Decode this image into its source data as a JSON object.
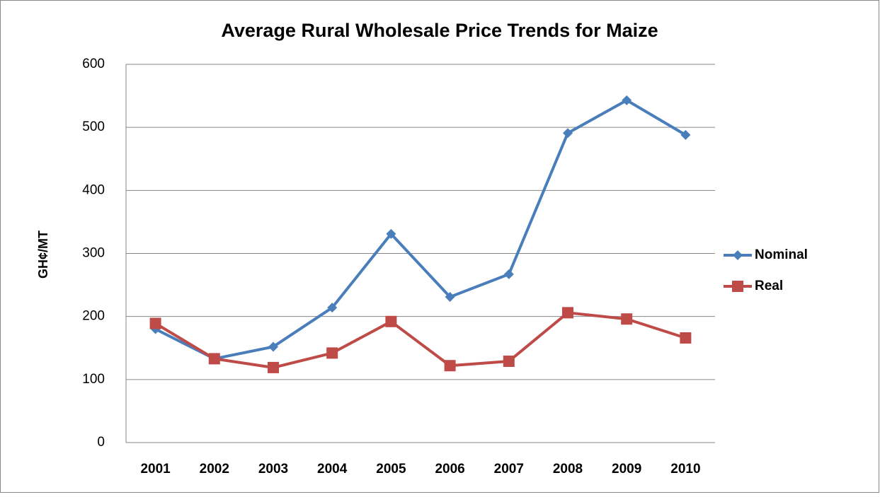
{
  "chart_data": {
    "type": "line",
    "title": "Average Rural Wholesale Price Trends for Maize",
    "y_label": "GH¢/MT",
    "categories": [
      "2001",
      "2002",
      "2003",
      "2004",
      "2005",
      "2006",
      "2007",
      "2008",
      "2009",
      "2010"
    ],
    "series": [
      {
        "name": "Nominal",
        "color": "#4a7ebb",
        "marker": "diamond",
        "values": [
          180,
          133,
          152,
          214,
          331,
          231,
          267,
          491,
          543,
          488
        ]
      },
      {
        "name": "Real",
        "color": "#be4b48",
        "marker": "square",
        "values": [
          189,
          133,
          119,
          142,
          192,
          122,
          129,
          206,
          196,
          166
        ]
      }
    ],
    "ylim": [
      0,
      600
    ],
    "yticks": [
      0,
      100,
      200,
      300,
      400,
      500,
      600
    ],
    "grid": true,
    "legend": "right"
  }
}
